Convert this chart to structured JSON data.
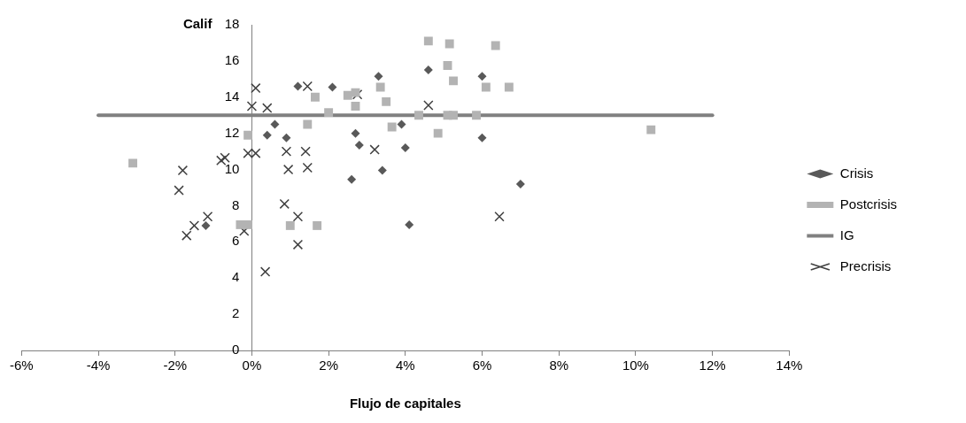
{
  "chart_data": {
    "type": "scatter",
    "ylabel": "Calif",
    "xlabel": "Flujo de capitales",
    "xlim": [
      -6,
      14
    ],
    "xticks": [
      {
        "value": -6,
        "label": "-6%"
      },
      {
        "value": -4,
        "label": "-4%"
      },
      {
        "value": -2,
        "label": "-2%"
      },
      {
        "value": 0,
        "label": "0%"
      },
      {
        "value": 2,
        "label": "2%"
      },
      {
        "value": 4,
        "label": "4%"
      },
      {
        "value": 6,
        "label": "6%"
      },
      {
        "value": 8,
        "label": "8%"
      },
      {
        "value": 10,
        "label": "10%"
      },
      {
        "value": 12,
        "label": "12%"
      },
      {
        "value": 14,
        "label": "14%"
      }
    ],
    "ylim": [
      0,
      18
    ],
    "yticks": [
      0,
      2,
      4,
      6,
      8,
      10,
      12,
      14,
      16,
      18
    ],
    "grid": false,
    "legend": "right",
    "series": [
      {
        "name": "Crisis",
        "color": "#595959",
        "marker": "diamond",
        "x": [
          -1.2,
          0.6,
          0.4,
          0.9,
          1.2,
          2.1,
          3.3,
          4.6,
          6.0,
          2.7,
          2.8,
          3.9,
          4.0,
          6.0,
          3.4,
          2.6,
          7.0,
          4.1
        ],
        "values": [
          6.9,
          12.5,
          11.9,
          11.75,
          14.6,
          14.55,
          15.15,
          15.5,
          15.15,
          12.0,
          11.35,
          12.5,
          11.2,
          11.75,
          9.95,
          9.45,
          9.2,
          6.95
        ]
      },
      {
        "name": "Postcrisis",
        "color": "#b3b3b3",
        "marker": "square",
        "x": [
          -3.1,
          -0.1,
          -0.3,
          -0.1,
          1.0,
          1.7,
          1.45,
          1.65,
          2.0,
          2.5,
          2.7,
          2.7,
          3.35,
          3.5,
          3.65,
          4.35,
          4.6,
          5.15,
          5.1,
          5.25,
          5.1,
          5.25,
          4.85,
          5.85,
          6.1,
          6.35,
          6.7,
          10.4
        ],
        "values": [
          10.35,
          11.9,
          6.95,
          6.95,
          6.9,
          6.9,
          12.5,
          14.0,
          13.15,
          14.1,
          14.25,
          13.5,
          14.55,
          13.75,
          12.35,
          13.0,
          17.1,
          16.95,
          15.75,
          14.9,
          13.0,
          13.0,
          12.0,
          13.0,
          14.55,
          16.85,
          14.55,
          12.2
        ]
      },
      {
        "name": "IG",
        "type": "line",
        "color": "#808080",
        "marker": "none",
        "x": [
          -4,
          12
        ],
        "values": [
          13,
          13
        ]
      },
      {
        "name": "Precrisis",
        "color": "#404040",
        "marker": "cross",
        "x": [
          0.1,
          0.0,
          0.4,
          -0.7,
          -0.8,
          -0.1,
          0.1,
          0.9,
          1.4,
          0.95,
          1.45,
          -1.8,
          -1.9,
          0.85,
          1.2,
          -1.15,
          -1.5,
          -1.7,
          -0.2,
          1.2,
          0.35,
          1.45,
          2.75,
          3.2,
          4.6,
          6.45
        ],
        "values": [
          14.5,
          13.5,
          13.4,
          10.65,
          10.5,
          10.9,
          10.9,
          11.0,
          11.0,
          10.0,
          10.1,
          9.95,
          8.85,
          8.1,
          7.4,
          7.4,
          6.9,
          6.35,
          6.6,
          5.85,
          4.35,
          14.6,
          14.15,
          11.1,
          13.55,
          7.4
        ]
      }
    ]
  }
}
